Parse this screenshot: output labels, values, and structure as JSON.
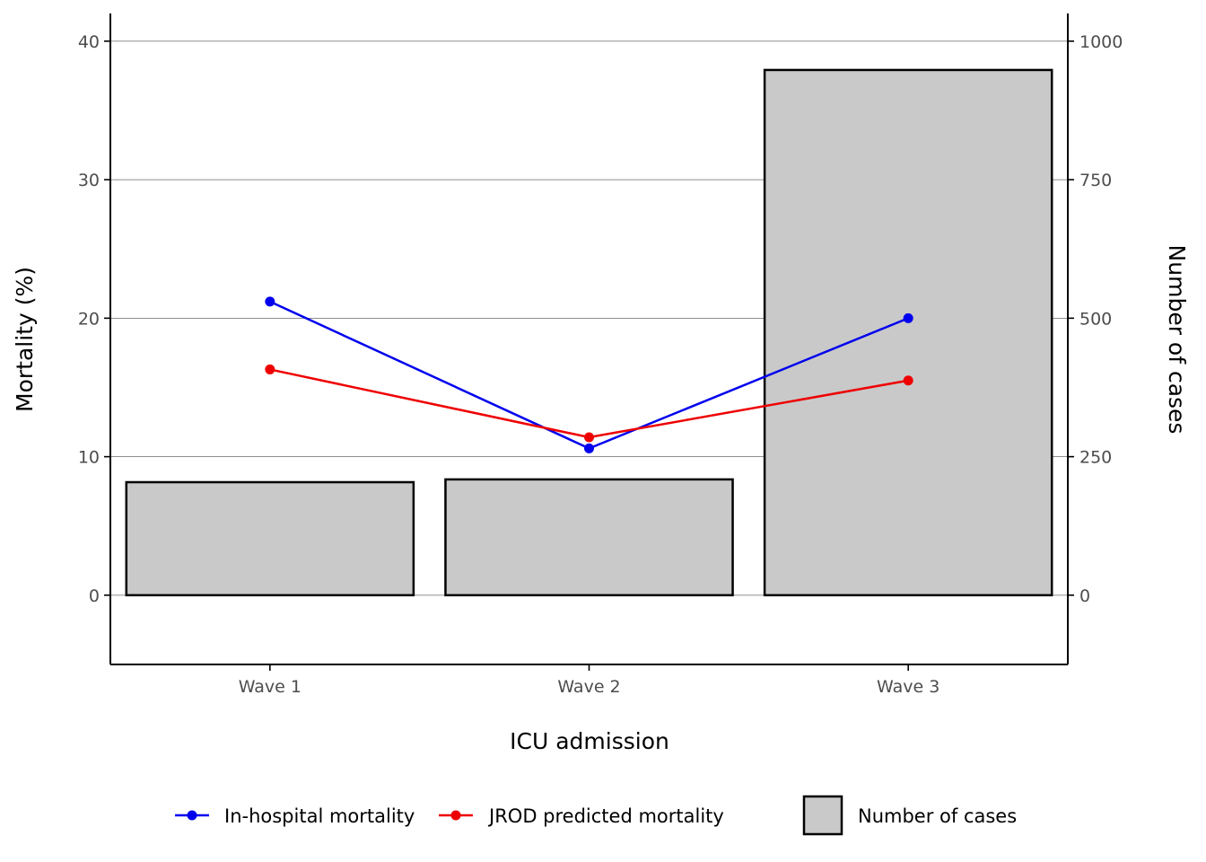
{
  "chart_data": {
    "type": "bar",
    "title": "",
    "xlabel": "ICU admission",
    "ylabel": "Mortality (%)",
    "ylabel_right": "Number of cases",
    "categories": [
      "Wave 1",
      "Wave 2",
      "Wave 3"
    ],
    "ylim": [
      -5,
      42
    ],
    "ylim_right": [
      -125,
      1050
    ],
    "yticks": [
      "0",
      "10",
      "20",
      "30",
      "40"
    ],
    "yticks_right": [
      "0",
      "250",
      "500",
      "750",
      "1000"
    ],
    "grid": "horizontal major lines",
    "bars": {
      "name": "Number of cases",
      "axis": "right",
      "values": [
        204,
        209,
        948
      ],
      "fill": "#c9c9c9",
      "stroke": "#000000"
    },
    "series": [
      {
        "name": "In-hospital mortality",
        "axis": "left",
        "type": "line",
        "values": [
          21.2,
          10.6,
          20.0
        ],
        "color": "#0000ee"
      },
      {
        "name": "JROD predicted mortality",
        "axis": "left",
        "type": "line",
        "values": [
          16.3,
          11.4,
          15.5
        ],
        "color": "#ee0000"
      }
    ],
    "legend": {
      "placement": "bottom",
      "items": [
        {
          "label": "In-hospital mortality",
          "kind": "line",
          "color": "#0000ee"
        },
        {
          "label": "JROD predicted mortality",
          "kind": "line",
          "color": "#ee0000"
        },
        {
          "label": "Number of cases",
          "kind": "box",
          "color": "#c9c9c9"
        }
      ]
    }
  }
}
